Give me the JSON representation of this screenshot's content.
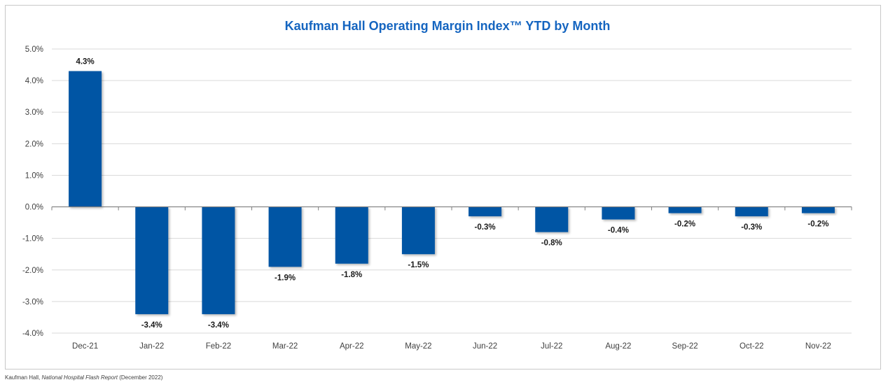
{
  "chart_data": {
    "type": "bar",
    "title": "Kaufman Hall Operating Margin Index™ YTD by Month",
    "categories": [
      "Dec-21",
      "Jan-22",
      "Feb-22",
      "Mar-22",
      "Apr-22",
      "May-22",
      "Jun-22",
      "Jul-22",
      "Aug-22",
      "Sep-22",
      "Oct-22",
      "Nov-22"
    ],
    "values": [
      4.3,
      -3.4,
      -3.4,
      -1.9,
      -1.8,
      -1.5,
      -0.3,
      -0.8,
      -0.4,
      -0.2,
      -0.3,
      -0.2
    ],
    "data_labels": [
      "4.3%",
      "-3.4%",
      "-3.4%",
      "-1.9%",
      "-1.8%",
      "-1.5%",
      "-0.3%",
      "-0.8%",
      "-0.4%",
      "-0.2%",
      "-0.3%",
      "-0.2%"
    ],
    "ylim": [
      -4,
      5
    ],
    "yticks": [
      5,
      4,
      3,
      2,
      1,
      0,
      -1,
      -2,
      -3,
      -4
    ],
    "ytick_labels": [
      "5.0%",
      "4.0%",
      "3.0%",
      "2.0%",
      "1.0%",
      "0.0%",
      "-1.0%",
      "-2.0%",
      "-3.0%",
      "-4.0%"
    ],
    "xlabel": "",
    "ylabel": "",
    "grid": true,
    "colors": {
      "bar": "#0055a4",
      "title": "#1565c0",
      "grid": "#d9d9d9",
      "axis": "#7f7f7f"
    }
  },
  "source": {
    "org": "Kaufman Hall, ",
    "publication": "National Hospital Flash Report",
    "date": " (December 2022)"
  }
}
